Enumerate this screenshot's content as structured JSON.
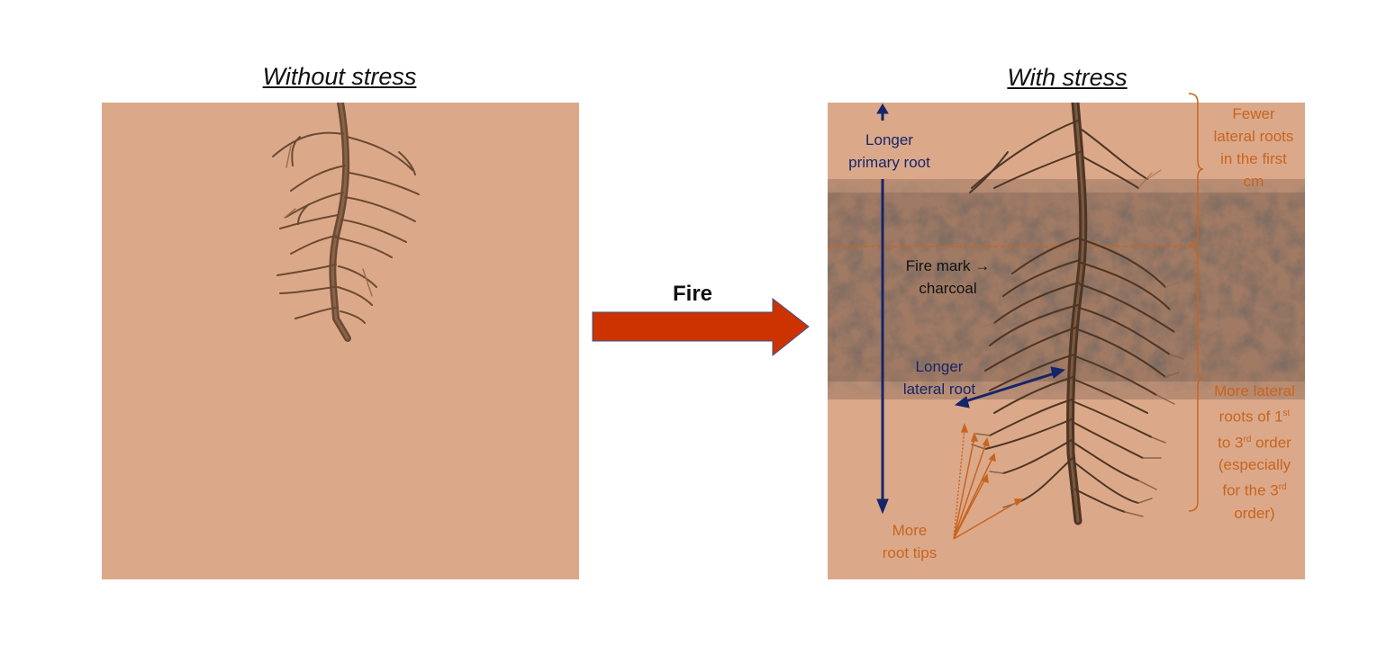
{
  "titles": {
    "left": "Without stress",
    "right": "With stress"
  },
  "arrow": {
    "label": "Fire",
    "color": "#cc3300"
  },
  "colors": {
    "soil": "#dba98a",
    "root": "#6b4a33",
    "navy": "#15256a",
    "annotation_orange": "#c8641e"
  },
  "labels": {
    "longer_primary_root": [
      "Longer",
      "primary root"
    ],
    "fire_mark": [
      "Fire mark →",
      "charcoal"
    ],
    "longer_lateral_root": [
      "Longer",
      "lateral root"
    ],
    "more_root_tips": [
      "More",
      "root tips"
    ],
    "fewer_lateral": [
      "Fewer",
      "lateral roots",
      "in the first",
      "cm"
    ],
    "more_lateral": {
      "line1": "More lateral",
      "line2_pre": "roots of 1",
      "line2_sup": "st",
      "line3_pre": "to 3",
      "line3_sup": "rd",
      "line3_post": " order",
      "line4": "(especially",
      "line5_pre": "for the 3",
      "line5_sup": "rd",
      "line6": "order)"
    }
  }
}
